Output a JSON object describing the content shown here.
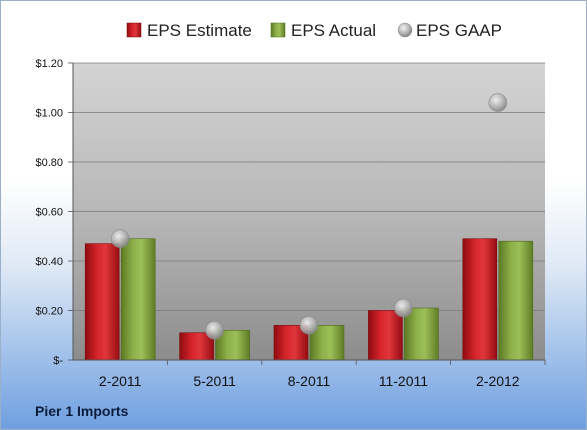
{
  "company": "Pier 1 Imports",
  "legend": {
    "estimate": "EPS Estimate",
    "actual": "EPS Actual",
    "gaap": "EPS GAAP"
  },
  "colors": {
    "estimate": "#c0151b",
    "actual": "#7fa038",
    "gaap": "#a9a9a9"
  },
  "chart_data": {
    "type": "bar",
    "categories": [
      "2-2011",
      "5-2011",
      "8-2011",
      "11-2011",
      "2-2012"
    ],
    "series": [
      {
        "name": "EPS Estimate",
        "values": [
          0.47,
          0.11,
          0.14,
          0.2,
          0.49
        ]
      },
      {
        "name": "EPS Actual",
        "values": [
          0.49,
          0.12,
          0.14,
          0.21,
          0.48
        ]
      },
      {
        "name": "EPS GAAP",
        "type": "scatter",
        "values": [
          0.49,
          0.12,
          0.14,
          0.21,
          1.04
        ]
      }
    ],
    "ylim": [
      0,
      1.2
    ],
    "yticks": [
      0,
      0.2,
      0.4,
      0.6,
      0.8,
      1.0,
      1.2
    ],
    "ytick_labels": [
      "$-",
      "$0.20",
      "$0.40",
      "$0.60",
      "$0.80",
      "$1.00",
      "$1.20"
    ],
    "grid": true,
    "legend_position": "top"
  }
}
